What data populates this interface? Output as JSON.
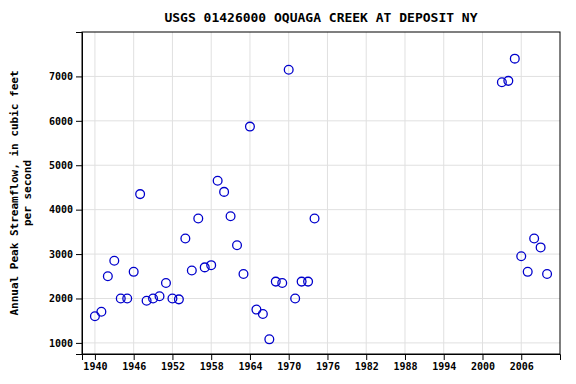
{
  "chart_data": {
    "type": "scatter",
    "title": "USGS 01426000 OQUAGA CREEK AT DEPOSIT NY",
    "ylabel": "Annual Peak Streamflow, in cubic feet\nper second",
    "x": [
      1940,
      1941,
      1942,
      1943,
      1944,
      1945,
      1946,
      1947,
      1948,
      1949,
      1950,
      1951,
      1952,
      1953,
      1954,
      1955,
      1956,
      1957,
      1958,
      1959,
      1960,
      1961,
      1962,
      1963,
      1964,
      1965,
      1966,
      1967,
      1968,
      1969,
      1970,
      1971,
      1972,
      1973,
      1974,
      2003,
      2004,
      2005,
      2006,
      2007,
      2008,
      2009,
      2010
    ],
    "values": [
      1600,
      1700,
      2500,
      2850,
      2000,
      2000,
      2600,
      4350,
      1950,
      2000,
      2050,
      2350,
      2000,
      1980,
      3350,
      2630,
      3800,
      2700,
      2750,
      4650,
      4400,
      3850,
      3200,
      2550,
      5870,
      1750,
      1650,
      1080,
      2380,
      2350,
      7150,
      2000,
      2380,
      2380,
      3800,
      6870,
      6900,
      7400,
      2950,
      2600,
      3350,
      3150,
      2550
    ],
    "color": "#0000cc",
    "marker": "circle",
    "xlim": [
      1938,
      2012
    ],
    "ylim": [
      750,
      8000
    ],
    "xticks": [
      1940,
      1946,
      1952,
      1958,
      1964,
      1970,
      1976,
      1982,
      1988,
      1994,
      2000,
      2006
    ],
    "yticks": [
      1000,
      2000,
      3000,
      4000,
      5000,
      6000,
      7000
    ],
    "grid": true
  }
}
